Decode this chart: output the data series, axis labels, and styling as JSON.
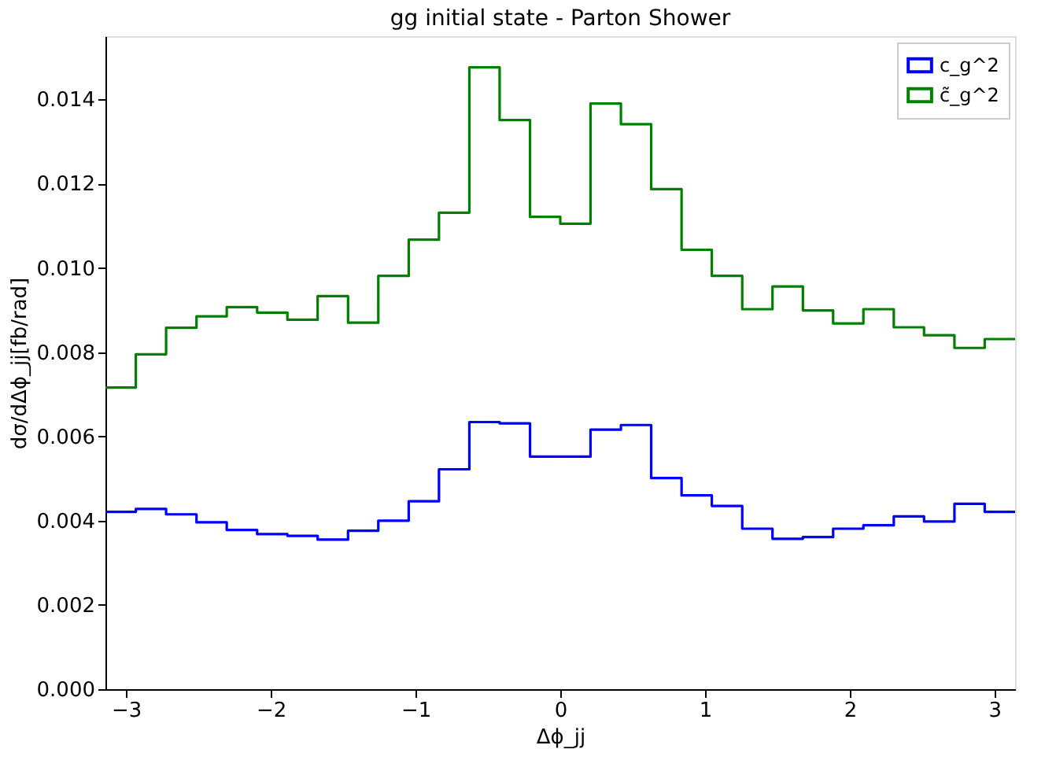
{
  "chart_data": {
    "type": "histogram",
    "title": "gg initial state - Parton Shower",
    "xlabel": "Δϕ_jj",
    "ylabel": "dσ/dΔϕ_jj[fb/rad]",
    "bins": [
      -3.142,
      -2.932,
      -2.723,
      -2.513,
      -2.304,
      -2.094,
      -1.885,
      -1.676,
      -1.466,
      -1.257,
      -1.047,
      -0.838,
      -0.628,
      -0.419,
      -0.209,
      0,
      0.209,
      0.419,
      0.628,
      0.838,
      1.047,
      1.257,
      1.466,
      1.676,
      1.885,
      2.094,
      2.304,
      2.513,
      2.723,
      2.932,
      3.142
    ],
    "series": [
      {
        "name": "c_g^2",
        "color": "#0000ff",
        "values": [
          0.00421,
          0.00428,
          0.00415,
          0.00396,
          0.00378,
          0.00368,
          0.00364,
          0.00355,
          0.00376,
          0.004,
          0.00446,
          0.00522,
          0.00634,
          0.00631,
          0.00552,
          0.00552,
          0.00616,
          0.00627,
          0.00501,
          0.0046,
          0.00435,
          0.00381,
          0.00357,
          0.00361,
          0.00381,
          0.00389,
          0.0041,
          0.00398,
          0.0044,
          0.00421
        ]
      },
      {
        "name": "c̃_g^2",
        "color": "#008000",
        "values": [
          0.00716,
          0.00795,
          0.00858,
          0.00885,
          0.00907,
          0.00894,
          0.00877,
          0.00933,
          0.0087,
          0.00981,
          0.01067,
          0.01131,
          0.01476,
          0.01351,
          0.01121,
          0.01105,
          0.0139,
          0.01341,
          0.01187,
          0.01043,
          0.00981,
          0.00902,
          0.00956,
          0.00899,
          0.00868,
          0.00902,
          0.00859,
          0.0084,
          0.0081,
          0.00831
        ]
      }
    ],
    "xlim": [
      -3.142,
      3.142
    ],
    "xticks": [
      -3,
      -2,
      -1,
      0,
      1,
      2,
      3
    ],
    "ylim": [
      0,
      0.0155
    ],
    "yticks": [
      {
        "value": 0,
        "label": "0.000"
      },
      {
        "value": 0.002,
        "label": "0.002"
      },
      {
        "value": 0.004,
        "label": "0.004"
      },
      {
        "value": 0.006,
        "label": "0.006"
      },
      {
        "value": 0.008,
        "label": "0.008"
      },
      {
        "value": 0.01,
        "label": "0.010"
      },
      {
        "value": 0.012,
        "label": "0.012"
      },
      {
        "value": 0.014,
        "label": "0.014"
      }
    ],
    "grid": false,
    "legend": "top right"
  }
}
